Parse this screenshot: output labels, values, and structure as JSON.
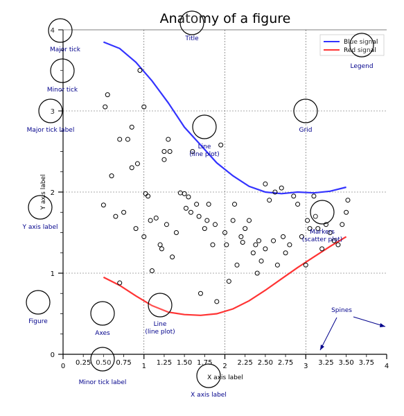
{
  "chart_data": {
    "type": "line",
    "title": "Anatomy of a figure",
    "xlabel": "X axis label",
    "ylabel": "Y axis label",
    "xlim": [
      0,
      4
    ],
    "ylim": [
      0,
      4
    ],
    "grid": true,
    "legend_position": "top-right",
    "series": [
      {
        "name": "Blue signal",
        "color": "#3333ff",
        "x": [
          0.5,
          0.7,
          0.9,
          1.1,
          1.3,
          1.5,
          1.7,
          1.9,
          2.1,
          2.3,
          2.5,
          2.7,
          2.9,
          3.1,
          3.3,
          3.5
        ],
        "y": [
          3.85,
          3.77,
          3.6,
          3.37,
          3.1,
          2.8,
          2.58,
          2.36,
          2.2,
          2.07,
          2.0,
          1.98,
          2.0,
          1.99,
          2.01,
          2.06
        ]
      },
      {
        "name": "Red signal",
        "color": "#ff3333",
        "x": [
          0.5,
          0.7,
          0.9,
          1.1,
          1.3,
          1.5,
          1.7,
          1.9,
          2.1,
          2.3,
          2.5,
          2.7,
          2.9,
          3.1,
          3.3,
          3.5
        ],
        "y": [
          0.95,
          0.85,
          0.72,
          0.6,
          0.52,
          0.49,
          0.48,
          0.5,
          0.56,
          0.66,
          0.79,
          0.93,
          1.07,
          1.2,
          1.33,
          1.45
        ]
      }
    ],
    "scatter": {
      "name": "Markers (scatter plot)",
      "x": [
        0.5,
        0.52,
        0.55,
        0.6,
        0.65,
        0.7,
        0.7,
        0.75,
        0.8,
        0.85,
        0.85,
        0.9,
        0.92,
        0.95,
        1.0,
        1.0,
        1.02,
        1.05,
        1.08,
        1.1,
        1.15,
        1.2,
        1.22,
        1.25,
        1.25,
        1.28,
        1.3,
        1.32,
        1.35,
        1.4,
        1.45,
        1.5,
        1.52,
        1.55,
        1.58,
        1.6,
        1.65,
        1.68,
        1.7,
        1.75,
        1.78,
        1.8,
        1.85,
        1.88,
        1.9,
        1.95,
        2.0,
        2.02,
        2.05,
        2.1,
        2.12,
        2.15,
        2.2,
        2.22,
        2.25,
        2.3,
        2.35,
        2.38,
        2.4,
        2.42,
        2.45,
        2.5,
        2.5,
        2.55,
        2.6,
        2.62,
        2.65,
        2.7,
        2.72,
        2.75,
        2.8,
        2.85,
        2.9,
        2.95,
        3.0,
        3.02,
        3.05,
        3.1,
        3.12,
        3.15,
        3.2,
        3.25,
        3.3,
        3.35,
        3.4,
        3.45,
        3.5,
        3.52
      ],
      "y": [
        1.84,
        3.05,
        3.2,
        2.2,
        1.7,
        2.65,
        0.88,
        1.75,
        2.65,
        2.3,
        2.8,
        1.55,
        2.35,
        3.5,
        3.05,
        1.45,
        1.98,
        1.95,
        1.65,
        1.03,
        1.68,
        1.35,
        1.3,
        2.4,
        2.5,
        1.6,
        2.65,
        2.5,
        1.2,
        1.5,
        1.99,
        1.98,
        1.8,
        1.94,
        1.75,
        2.5,
        1.85,
        1.7,
        0.75,
        1.55,
        1.65,
        1.85,
        1.35,
        1.6,
        0.65,
        2.58,
        1.5,
        1.35,
        0.9,
        1.65,
        1.85,
        1.1,
        1.45,
        1.38,
        1.55,
        1.65,
        1.25,
        1.35,
        1.0,
        1.4,
        1.15,
        1.3,
        2.1,
        1.9,
        1.4,
        2.0,
        1.1,
        2.05,
        1.45,
        1.25,
        1.35,
        1.95,
        1.85,
        1.45,
        1.1,
        1.65,
        1.55,
        1.95,
        1.7,
        1.55,
        1.3,
        1.6,
        1.5,
        1.4,
        1.35,
        1.6,
        1.75,
        1.9
      ]
    },
    "x_ticks_major": [
      0,
      1,
      2,
      3,
      4
    ],
    "x_ticks_minor": [
      "0.25",
      "0.50",
      "0.75",
      "1.25",
      "1.50",
      "1.75",
      "2.25",
      "2.50",
      "2.75",
      "3.25",
      "3.50",
      "3.75"
    ],
    "x_ticks_minor_values": [
      0.25,
      0.5,
      0.75,
      1.25,
      1.5,
      1.75,
      2.25,
      2.5,
      2.75,
      3.25,
      3.5,
      3.75
    ],
    "y_ticks_major": [
      0,
      1,
      2,
      3,
      4
    ],
    "annotations": [
      {
        "label": "Major tick",
        "cx": 0.05,
        "cy": 4.0
      },
      {
        "label": "Minor tick",
        "cx": 0.0,
        "cy": 3.5
      },
      {
        "label": "Major tick label",
        "cx": -0.15,
        "cy": 3.0
      },
      {
        "label": "Title",
        "cx": 1.6,
        "cy": 4.3
      },
      {
        "label": "Legend",
        "cx": 3.62,
        "cy": 3.7
      },
      {
        "label": "Grid",
        "cx": 3.0,
        "cy": 3.0
      },
      {
        "label": "Line\n(line plot)",
        "cx": 1.75,
        "cy": 2.8
      },
      {
        "label": "Y axis label",
        "cx": -0.3,
        "cy": 1.8
      },
      {
        "label": "Markers\n(scatter plot)",
        "cx": 3.1,
        "cy": 1.75
      },
      {
        "label": "Figure",
        "cx": -0.35,
        "cy": 0.65
      },
      {
        "label": "Axes",
        "cx": 0.5,
        "cy": 0.5
      },
      {
        "label": "Line\n(line plot)",
        "cx": 1.2,
        "cy": 0.6
      },
      {
        "label": "Spines",
        "cx": 3.45,
        "cy": 0.5
      },
      {
        "label": "Minor tick label",
        "cx": 0.5,
        "cy": -0.12
      },
      {
        "label": "X axis label",
        "cx": 1.8,
        "cy": -0.3
      }
    ]
  }
}
